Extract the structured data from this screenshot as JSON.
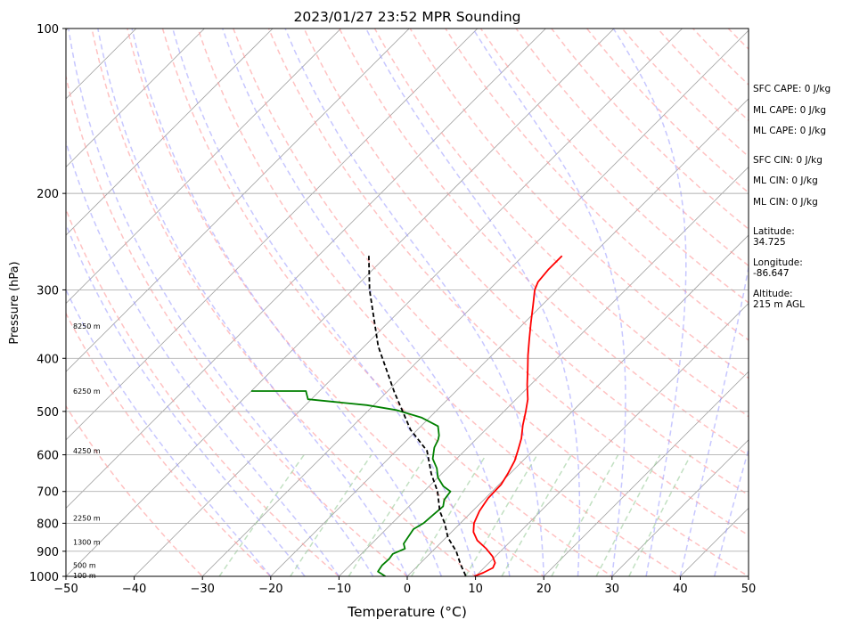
{
  "chart_data": {
    "type": "line",
    "title": "2023/01/27 23:52 MPR Sounding",
    "xlabel": "Temperature (°C)",
    "ylabel": "Pressure (hPa)",
    "xlim": [
      -50,
      50
    ],
    "ylim": [
      1000,
      100
    ],
    "y_scale": "log",
    "x_ticks": [
      -50,
      -40,
      -30,
      -20,
      -10,
      0,
      10,
      20,
      30,
      40,
      50
    ],
    "x_tick_labels": [
      "−50",
      "−40",
      "−30",
      "−20",
      "−10",
      "0",
      "10",
      "20",
      "30",
      "40",
      "50"
    ],
    "y_ticks": [
      100,
      200,
      300,
      400,
      500,
      600,
      700,
      800,
      900,
      1000
    ],
    "y_tick_labels": [
      "100",
      "200",
      "300",
      "400",
      "500",
      "600",
      "700",
      "800",
      "900",
      "1000"
    ],
    "grid": true,
    "height_labels": [
      {
        "text": "8250 m",
        "p": 349
      },
      {
        "text": "6250 m",
        "p": 459
      },
      {
        "text": "4250 m",
        "p": 590
      },
      {
        "text": "2250 m",
        "p": 782
      },
      {
        "text": "1300 m",
        "p": 865
      },
      {
        "text": "500 m",
        "p": 954
      },
      {
        "text": "100 m",
        "p": 997
      }
    ],
    "series": [
      {
        "role": "temperature",
        "color": "#ff0000",
        "points": [
          [
            -24.3,
            260
          ],
          [
            -24.3,
            275
          ],
          [
            -24.0,
            290
          ],
          [
            -23.3,
            300
          ],
          [
            -21.3,
            320
          ],
          [
            -19.0,
            345
          ],
          [
            -16.8,
            370
          ],
          [
            -14.7,
            395
          ],
          [
            -12.6,
            420
          ],
          [
            -10.5,
            447
          ],
          [
            -8.3,
            475
          ],
          [
            -6.8,
            500
          ],
          [
            -5.2,
            530
          ],
          [
            -3.5,
            560
          ],
          [
            -2.2,
            590
          ],
          [
            -1.2,
            615
          ],
          [
            -0.3,
            650
          ],
          [
            0.3,
            680
          ],
          [
            0.4,
            720
          ],
          [
            1.0,
            760
          ],
          [
            2.0,
            800
          ],
          [
            3.2,
            830
          ],
          [
            5.0,
            860
          ],
          [
            7.5,
            890
          ],
          [
            9.6,
            920
          ],
          [
            10.9,
            945
          ],
          [
            11.3,
            965
          ],
          [
            10.6,
            985
          ],
          [
            9.8,
            1000
          ]
        ]
      },
      {
        "role": "dewpoint",
        "color": "#008000",
        "points": [
          [
            -50.0,
            459
          ],
          [
            -42.0,
            459
          ],
          [
            -40.5,
            475
          ],
          [
            -31.0,
            487
          ],
          [
            -26.0,
            497
          ],
          [
            -21.2,
            513
          ],
          [
            -17.5,
            532
          ],
          [
            -16.0,
            553
          ],
          [
            -15.5,
            563
          ],
          [
            -14.9,
            582
          ],
          [
            -13.5,
            610
          ],
          [
            -11.5,
            635
          ],
          [
            -10.0,
            660
          ],
          [
            -7.9,
            685
          ],
          [
            -6.1,
            700
          ],
          [
            -5.8,
            725
          ],
          [
            -5.0,
            745
          ],
          [
            -5.2,
            770
          ],
          [
            -5.4,
            800
          ],
          [
            -6.0,
            820
          ],
          [
            -5.6,
            850
          ],
          [
            -5.3,
            872
          ],
          [
            -4.4,
            890
          ],
          [
            -5.4,
            910
          ],
          [
            -5.2,
            930
          ],
          [
            -5.3,
            955
          ],
          [
            -5.0,
            980
          ],
          [
            -3.2,
            1000
          ]
        ]
      },
      {
        "role": "parcel-profile",
        "color": "#000000",
        "dashed": true,
        "points": [
          [
            -52.6,
            260
          ],
          [
            -47.5,
            300
          ],
          [
            -38.0,
            380
          ],
          [
            -29.0,
            460
          ],
          [
            -21.0,
            540
          ],
          [
            -15.5,
            590
          ],
          [
            -11.5,
            650
          ],
          [
            -8.0,
            700
          ],
          [
            -4.8,
            760
          ],
          [
            -2.3,
            800
          ],
          [
            0.3,
            850
          ],
          [
            3.5,
            900
          ],
          [
            6.0,
            950
          ],
          [
            8.6,
            1000
          ]
        ]
      }
    ],
    "annotations": [
      {
        "key": "sfc_cape",
        "text": "SFC CAPE: 0 J/kg"
      },
      {
        "key": "ml_cape_1",
        "text": "ML CAPE: 0 J/kg"
      },
      {
        "key": "ml_cape_2",
        "text": "ML CAPE: 0 J/kg"
      },
      {
        "key": "sfc_cin",
        "text": "SFC CIN: 0 J/kg"
      },
      {
        "key": "ml_cin_1",
        "text": "ML CIN: 0 J/kg"
      },
      {
        "key": "ml_cin_2",
        "text": "ML CIN: 0 J/kg"
      },
      {
        "key": "latitude",
        "text": "Latitude:\n34.725"
      },
      {
        "key": "longitude",
        "text": "Longitude:\n-86.647"
      },
      {
        "key": "altitude",
        "text": "Altitude:\n215 m AGL"
      }
    ],
    "colors": {
      "isotherm": "#a0a0a0",
      "dry_adiabat": "#ff9999",
      "moist_adiabat": "#9999ff",
      "mixing_ratio": "#99cc99",
      "temperature": "#ff0000",
      "dewpoint": "#008000",
      "parcel": "#000000"
    }
  }
}
